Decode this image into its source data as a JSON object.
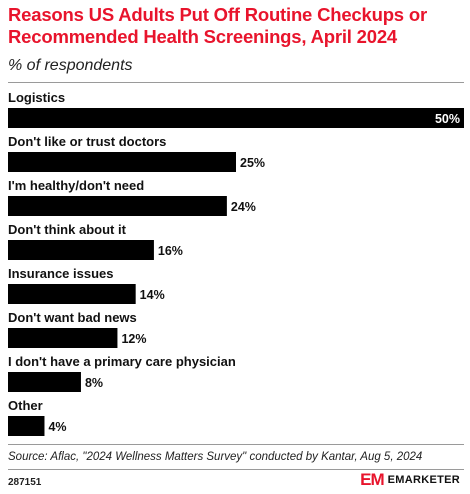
{
  "header": {
    "title": "Reasons US Adults Put Off Routine Checkups or Recommended Health Screenings, April 2024",
    "subtitle": "% of respondents"
  },
  "chart_data": {
    "type": "bar",
    "orientation": "horizontal",
    "categories": [
      "Logistics",
      "Don't like or trust doctors",
      "I'm healthy/don't need",
      "Don't think about it",
      "Insurance issues",
      "Don't want bad news",
      "I don't have a primary care physician",
      "Other"
    ],
    "values": [
      50,
      25,
      24,
      16,
      14,
      12,
      8,
      4
    ],
    "value_labels": [
      "50%",
      "25%",
      "24%",
      "16%",
      "14%",
      "12%",
      "8%",
      "4%"
    ],
    "xlim": [
      0,
      50
    ],
    "bar_color": "#000000",
    "grid": false,
    "legend": "none"
  },
  "footer": {
    "source": "Source: Aflac, \"2024 Wellness Matters Survey\" conducted by Kantar, Aug 5, 2024",
    "chart_id": "287151",
    "brand": "EMARKETER",
    "brand_mark": "EM",
    "brand_color": "#e8142c"
  }
}
